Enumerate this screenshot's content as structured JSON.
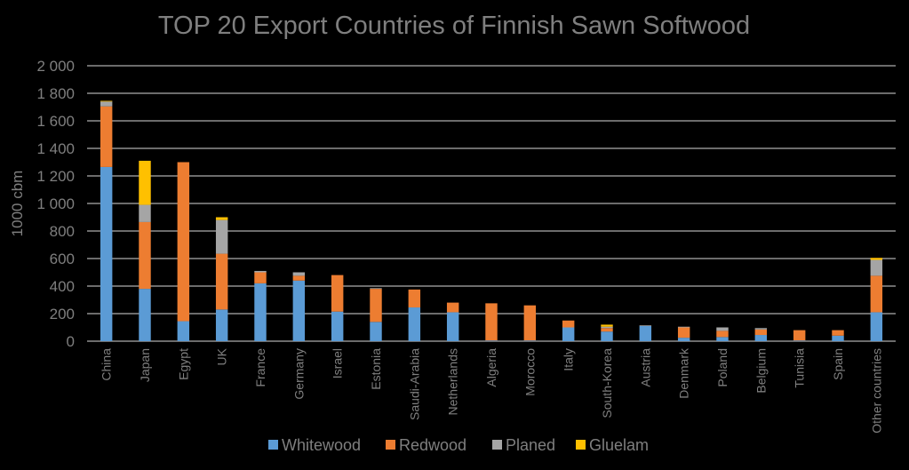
{
  "chart_data": {
    "type": "bar",
    "stacked": true,
    "title": "TOP 20 Export Countries of Finnish Sawn Softwood",
    "ylabel": "1000 cbm",
    "xlabel": "",
    "ylim": [
      0,
      2000
    ],
    "yticks": [
      0,
      200,
      400,
      600,
      800,
      1000,
      1200,
      1400,
      1600,
      1800,
      2000
    ],
    "ytick_labels": [
      "0",
      "200",
      "400",
      "600",
      "800",
      "1 000",
      "1 200",
      "1 400",
      "1 600",
      "1 800",
      "2 000"
    ],
    "grid": true,
    "legend_position": "bottom",
    "categories": [
      "China",
      "Japan",
      "Egypt",
      "UK",
      "France",
      "Germany",
      "Israel",
      "Estonia",
      "Saudi-Arabia",
      "Netherlands",
      "Algeria",
      "Morocco",
      "Italy",
      "South-Korea",
      "Austria",
      "Denmark",
      "Poland",
      "Belgium",
      "Tunisia",
      "Spain",
      "Other countries"
    ],
    "series": [
      {
        "name": "Whitewood",
        "color": "#5B9BD5",
        "values": [
          1265,
          380,
          145,
          230,
          420,
          440,
          215,
          140,
          245,
          210,
          5,
          5,
          100,
          70,
          110,
          25,
          30,
          45,
          5,
          40,
          210
        ]
      },
      {
        "name": "Redwood",
        "color": "#ED7D31",
        "values": [
          440,
          485,
          1155,
          405,
          80,
          35,
          265,
          240,
          130,
          70,
          270,
          255,
          50,
          25,
          0,
          75,
          45,
          40,
          75,
          40,
          265
        ]
      },
      {
        "name": "Planed",
        "color": "#A5A5A5",
        "values": [
          35,
          125,
          0,
          245,
          10,
          25,
          0,
          5,
          0,
          0,
          0,
          0,
          0,
          10,
          5,
          5,
          25,
          10,
          0,
          0,
          115
        ]
      },
      {
        "name": "Gluelam",
        "color": "#FFC000",
        "values": [
          5,
          320,
          0,
          20,
          0,
          0,
          0,
          0,
          0,
          0,
          0,
          0,
          0,
          15,
          0,
          0,
          0,
          0,
          0,
          0,
          15
        ]
      }
    ]
  }
}
